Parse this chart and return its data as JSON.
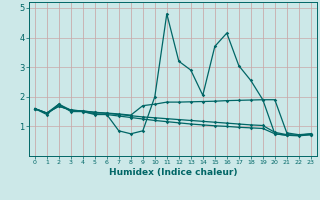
{
  "xlabel": "Humidex (Indice chaleur)",
  "bg_color": "#cce8e8",
  "grid_color_h": "#c8a8a8",
  "grid_color_v": "#c8a0a0",
  "line_color": "#006666",
  "xlim": [
    -0.5,
    23.5
  ],
  "ylim": [
    0,
    5.2
  ],
  "xticks": [
    0,
    1,
    2,
    3,
    4,
    5,
    6,
    7,
    8,
    9,
    10,
    11,
    12,
    13,
    14,
    15,
    16,
    17,
    18,
    19,
    20,
    21,
    22,
    23
  ],
  "yticks": [
    1,
    2,
    3,
    4,
    5
  ],
  "series1": [
    1.6,
    1.4,
    1.75,
    1.5,
    1.5,
    1.4,
    1.4,
    0.85,
    0.75,
    0.85,
    2.0,
    4.8,
    3.2,
    2.9,
    2.05,
    3.7,
    4.15,
    3.05,
    2.55,
    1.9,
    0.75,
    0.7,
    0.7,
    0.75
  ],
  "series2": [
    1.6,
    1.45,
    1.75,
    1.55,
    1.52,
    1.47,
    1.45,
    1.42,
    1.38,
    1.7,
    1.75,
    1.82,
    1.82,
    1.83,
    1.84,
    1.85,
    1.87,
    1.88,
    1.89,
    1.9,
    1.9,
    0.78,
    0.72,
    0.75
  ],
  "series3": [
    1.6,
    1.45,
    1.68,
    1.55,
    1.5,
    1.43,
    1.4,
    1.35,
    1.3,
    1.25,
    1.2,
    1.16,
    1.12,
    1.08,
    1.05,
    1.02,
    1.0,
    0.97,
    0.95,
    0.93,
    0.75,
    0.7,
    0.68,
    0.72
  ],
  "series4": [
    1.6,
    1.45,
    1.68,
    1.55,
    1.52,
    1.48,
    1.44,
    1.4,
    1.36,
    1.32,
    1.29,
    1.26,
    1.23,
    1.2,
    1.17,
    1.14,
    1.11,
    1.08,
    1.05,
    1.03,
    0.8,
    0.72,
    0.7,
    0.72
  ]
}
